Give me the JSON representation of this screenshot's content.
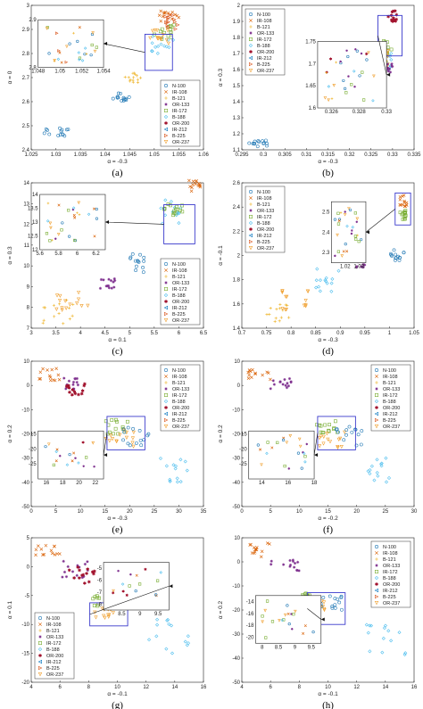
{
  "series_style": [
    {
      "name": "N-100",
      "color": "#1f77b4",
      "marker": "circle"
    },
    {
      "name": "IR-108",
      "color": "#d95f02",
      "marker": "x"
    },
    {
      "name": "B-121",
      "color": "#edb120",
      "marker": "plus"
    },
    {
      "name": "OR-133",
      "color": "#7e2f8e",
      "marker": "star"
    },
    {
      "name": "IR-172",
      "color": "#77ac30",
      "marker": "square"
    },
    {
      "name": "B-188",
      "color": "#4dbeee",
      "marker": "diamond"
    },
    {
      "name": "OR-200",
      "color": "#a2142f",
      "marker": "hexagram"
    },
    {
      "name": "IR-212",
      "color": "#0072bd",
      "marker": "tri-left"
    },
    {
      "name": "B-225",
      "color": "#d95319",
      "marker": "tri-right"
    },
    {
      "name": "OR-237",
      "color": "#f0a030",
      "marker": "tri-down"
    }
  ],
  "chart_data": [
    {
      "type": "scatter",
      "caption": "(a)",
      "xlabel": "α = -0.3",
      "ylabel": "α = 0",
      "xlim": [
        1.025,
        1.06
      ],
      "ylim": [
        2.4,
        3.0
      ],
      "xticks": [
        1.025,
        1.03,
        1.035,
        1.04,
        1.045,
        1.05,
        1.055,
        1.06
      ],
      "yticks": [
        2.4,
        2.5,
        2.6,
        2.7,
        2.8,
        2.9,
        3.0
      ],
      "legend": "bottom-right",
      "clusters": [
        {
          "s": 0,
          "x": [
            1.027,
            1.033
          ],
          "y": [
            2.45,
            2.49
          ]
        },
        {
          "s": 0,
          "x": [
            1.041,
            1.045
          ],
          "y": [
            2.6,
            2.64
          ]
        },
        {
          "s": 2,
          "x": [
            1.044,
            1.048
          ],
          "y": [
            2.68,
            2.72
          ]
        },
        {
          "s": 1,
          "x": [
            1.051,
            1.055
          ],
          "y": [
            2.92,
            2.98
          ]
        },
        {
          "s": 4,
          "x": [
            1.05,
            1.055
          ],
          "y": [
            2.86,
            2.92
          ]
        },
        {
          "s": 5,
          "x": [
            1.049,
            1.054
          ],
          "y": [
            2.8,
            2.88
          ]
        },
        {
          "s": 8,
          "x": [
            1.052,
            1.055
          ],
          "y": [
            2.9,
            2.96
          ]
        },
        {
          "s": 9,
          "x": [
            1.049,
            1.053
          ],
          "y": [
            2.84,
            2.9
          ]
        }
      ],
      "inset": {
        "xlim": [
          1.048,
          1.054
        ],
        "ylim": [
          2.8,
          2.9
        ],
        "xticks": [
          1.048,
          1.05,
          1.052,
          1.054
        ],
        "yticks": [
          2.8,
          2.9
        ]
      }
    },
    {
      "type": "scatter",
      "caption": "(b)",
      "xlabel": "α = -0.3",
      "ylabel": "α = 0.3",
      "xlim": [
        0.295,
        0.335
      ],
      "ylim": [
        1.1,
        2.0
      ],
      "xticks": [
        0.295,
        0.3,
        0.305,
        0.31,
        0.315,
        0.32,
        0.325,
        0.33,
        0.335
      ],
      "yticks": [
        1.1,
        1.2,
        1.3,
        1.4,
        1.5,
        1.6,
        1.7,
        1.8,
        1.9,
        2.0
      ],
      "legend": "top-left",
      "clusters": [
        {
          "s": 0,
          "x": [
            0.296,
            0.301
          ],
          "y": [
            1.12,
            1.16
          ]
        },
        {
          "s": 0,
          "x": [
            0.325,
            0.327
          ],
          "y": [
            1.45,
            1.55
          ]
        },
        {
          "s": 6,
          "x": [
            0.329,
            0.331
          ],
          "y": [
            1.9,
            1.98
          ]
        },
        {
          "s": 4,
          "x": [
            0.327,
            0.33
          ],
          "y": [
            1.7,
            1.78
          ]
        },
        {
          "s": 5,
          "x": [
            0.327,
            0.33
          ],
          "y": [
            1.6,
            1.7
          ]
        },
        {
          "s": 2,
          "x": [
            0.326,
            0.329
          ],
          "y": [
            1.6,
            1.75
          ]
        },
        {
          "s": 9,
          "x": [
            0.326,
            0.329
          ],
          "y": [
            1.62,
            1.72
          ]
        },
        {
          "s": 3,
          "x": [
            0.328,
            0.33
          ],
          "y": [
            1.58,
            1.64
          ]
        }
      ],
      "inset": {
        "xlim": [
          0.325,
          0.33
        ],
        "ylim": [
          1.6,
          1.75
        ],
        "xticks": [
          0.326,
          0.328,
          0.33
        ],
        "yticks": [
          1.6,
          1.65,
          1.7,
          1.75
        ]
      }
    },
    {
      "type": "scatter",
      "caption": "(c)",
      "xlabel": "α = 0.1",
      "ylabel": "α = 0.3",
      "xlim": [
        3,
        6.5
      ],
      "ylim": [
        7,
        14
      ],
      "xticks": [
        3,
        3.5,
        4,
        4.5,
        5,
        5.5,
        6,
        6.5
      ],
      "yticks": [
        7,
        8,
        9,
        10,
        11,
        12,
        13,
        14
      ],
      "legend": "bottom-right",
      "clusters": [
        {
          "s": 2,
          "x": [
            3.1,
            3.9
          ],
          "y": [
            7.2,
            8.4
          ]
        },
        {
          "s": 9,
          "x": [
            3.5,
            4.2
          ],
          "y": [
            7.8,
            8.8
          ]
        },
        {
          "s": 3,
          "x": [
            4.4,
            4.7
          ],
          "y": [
            8.9,
            9.4
          ]
        },
        {
          "s": 0,
          "x": [
            5.0,
            5.3
          ],
          "y": [
            9.6,
            10.6
          ]
        },
        {
          "s": 5,
          "x": [
            5.6,
            6.2
          ],
          "y": [
            12.0,
            13.2
          ]
        },
        {
          "s": 4,
          "x": [
            5.7,
            6.1
          ],
          "y": [
            12.4,
            13.0
          ]
        },
        {
          "s": 1,
          "x": [
            6.2,
            6.45
          ],
          "y": [
            13.6,
            14.2
          ]
        }
      ],
      "inset": {
        "xlim": [
          5.6,
          6.3
        ],
        "ylim": [
          12,
          14
        ],
        "xticks": [
          5.6,
          5.8,
          6,
          6.2
        ],
        "yticks": [
          12,
          12.5,
          13,
          13.5,
          14
        ]
      }
    },
    {
      "type": "scatter",
      "caption": "(d)",
      "xlabel": "α = -0.3",
      "ylabel": "α = -0.1",
      "xlim": [
        0.7,
        1.05
      ],
      "ylim": [
        1.4,
        2.6
      ],
      "xticks": [
        0.7,
        0.75,
        0.8,
        0.85,
        0.9,
        0.95,
        1.0,
        1.05
      ],
      "yticks": [
        1.4,
        1.6,
        1.8,
        2.0,
        2.2,
        2.4,
        2.6
      ],
      "legend": "top-left",
      "clusters": [
        {
          "s": 2,
          "x": [
            0.74,
            0.8
          ],
          "y": [
            1.45,
            1.6
          ]
        },
        {
          "s": 9,
          "x": [
            0.78,
            0.84
          ],
          "y": [
            1.55,
            1.75
          ]
        },
        {
          "s": 5,
          "x": [
            0.85,
            0.9
          ],
          "y": [
            1.7,
            1.9
          ]
        },
        {
          "s": 3,
          "x": [
            0.93,
            0.95
          ],
          "y": [
            1.9,
            1.96
          ]
        },
        {
          "s": 0,
          "x": [
            1.0,
            1.03
          ],
          "y": [
            1.95,
            2.05
          ]
        },
        {
          "s": 1,
          "x": [
            1.02,
            1.035
          ],
          "y": [
            2.4,
            2.5
          ]
        },
        {
          "s": 4,
          "x": [
            1.02,
            1.035
          ],
          "y": [
            2.3,
            2.38
          ]
        }
      ],
      "inset": {
        "xlim": [
          1.01,
          1.035
        ],
        "ylim": [
          2.25,
          2.55
        ],
        "xticks": [
          1.02,
          1.03
        ],
        "yticks": [
          2.3,
          2.4,
          2.5
        ]
      }
    },
    {
      "type": "scatter",
      "caption": "(e)",
      "xlabel": "α = -0.3",
      "ylabel": "α = 0.2",
      "xlim": [
        0,
        35
      ],
      "ylim": [
        -50,
        10
      ],
      "xticks": [
        0,
        5,
        10,
        15,
        20,
        25,
        30,
        35
      ],
      "yticks": [
        -50,
        -40,
        -30,
        -20,
        -10,
        0,
        10
      ],
      "legend": "top-right",
      "clusters": [
        {
          "s": 1,
          "x": [
            1,
            6
          ],
          "y": [
            2,
            7
          ]
        },
        {
          "s": 3,
          "x": [
            6,
            10
          ],
          "y": [
            -2,
            3
          ]
        },
        {
          "s": 6,
          "x": [
            7,
            11
          ],
          "y": [
            -4,
            1
          ]
        },
        {
          "s": 4,
          "x": [
            15,
            20
          ],
          "y": [
            -20,
            -14
          ]
        },
        {
          "s": 9,
          "x": [
            15,
            21
          ],
          "y": [
            -26,
            -18
          ]
        },
        {
          "s": 0,
          "x": [
            18,
            24
          ],
          "y": [
            -25,
            -17
          ]
        },
        {
          "s": 5,
          "x": [
            26,
            32
          ],
          "y": [
            -40,
            -30
          ]
        }
      ],
      "inset": {
        "xlim": [
          15,
          23
        ],
        "ylim": [
          -30,
          -14
        ],
        "xticks": [
          16,
          18,
          20,
          22
        ],
        "yticks": [
          -15,
          -20,
          -25
        ]
      }
    },
    {
      "type": "scatter",
      "caption": "(f)",
      "xlabel": "α = -0.2",
      "ylabel": "α = 0.2",
      "xlim": [
        0,
        30
      ],
      "ylim": [
        -50,
        10
      ],
      "xticks": [
        0,
        5,
        10,
        15,
        20,
        25,
        30
      ],
      "yticks": [
        -50,
        -40,
        -30,
        -20,
        -10,
        0,
        10
      ],
      "legend": "top-right",
      "clusters": [
        {
          "s": 1,
          "x": [
            1,
            5
          ],
          "y": [
            2,
            7
          ]
        },
        {
          "s": 3,
          "x": [
            5,
            9
          ],
          "y": [
            -2,
            3
          ]
        },
        {
          "s": 4,
          "x": [
            13,
            17
          ],
          "y": [
            -20,
            -14
          ]
        },
        {
          "s": 9,
          "x": [
            13,
            18
          ],
          "y": [
            -26,
            -18
          ]
        },
        {
          "s": 0,
          "x": [
            16,
            21
          ],
          "y": [
            -25,
            -17
          ]
        },
        {
          "s": 5,
          "x": [
            22,
            28
          ],
          "y": [
            -40,
            -30
          ]
        }
      ],
      "inset": {
        "xlim": [
          13,
          18
        ],
        "ylim": [
          -30,
          -14
        ],
        "xticks": [
          14,
          16,
          18
        ],
        "yticks": [
          -15,
          -20,
          -25
        ]
      }
    },
    {
      "type": "scatter",
      "caption": "(g)",
      "xlabel": "α = -0.1",
      "ylabel": "α = 0.1",
      "xlim": [
        4,
        16
      ],
      "ylim": [
        -20,
        5
      ],
      "xticks": [
        4,
        6,
        8,
        10,
        12,
        14,
        16
      ],
      "yticks": [
        -20,
        -15,
        -10,
        -5,
        0,
        5
      ],
      "legend": "bottom-left",
      "clusters": [
        {
          "s": 1,
          "x": [
            4.2,
            6
          ],
          "y": [
            2,
            4
          ]
        },
        {
          "s": 3,
          "x": [
            6,
            8
          ],
          "y": [
            -2,
            1
          ]
        },
        {
          "s": 6,
          "x": [
            6.5,
            8.5
          ],
          "y": [
            -3,
            0
          ]
        },
        {
          "s": 4,
          "x": [
            8.3,
            9.5
          ],
          "y": [
            -7,
            -5
          ]
        },
        {
          "s": 9,
          "x": [
            8.3,
            9.8
          ],
          "y": [
            -9,
            -7
          ]
        },
        {
          "s": 0,
          "x": [
            9.5,
            11
          ],
          "y": [
            -8,
            -5
          ]
        },
        {
          "s": 5,
          "x": [
            12,
            15
          ],
          "y": [
            -15,
            -9
          ]
        }
      ],
      "inset": {
        "xlim": [
          8,
          9.8
        ],
        "ylim": [
          -8.5,
          -4.5
        ],
        "xticks": [
          8.5,
          9,
          9.5
        ],
        "yticks": [
          -5,
          -6,
          -7,
          -8
        ]
      }
    },
    {
      "type": "scatter",
      "caption": "(h)",
      "xlabel": "α = -0.1",
      "ylabel": "α = 0.2",
      "xlim": [
        4,
        16
      ],
      "ylim": [
        -50,
        10
      ],
      "xticks": [
        4,
        6,
        8,
        10,
        12,
        14,
        16
      ],
      "yticks": [
        -50,
        -40,
        -30,
        -20,
        -10,
        0,
        10
      ],
      "legend": "top-right",
      "clusters": [
        {
          "s": 1,
          "x": [
            4.2,
            6
          ],
          "y": [
            2,
            8
          ]
        },
        {
          "s": 3,
          "x": [
            6,
            8
          ],
          "y": [
            -4,
            2
          ]
        },
        {
          "s": 4,
          "x": [
            8,
            9.5
          ],
          "y": [
            -16,
            -13
          ]
        },
        {
          "s": 9,
          "x": [
            8,
            9.8
          ],
          "y": [
            -20,
            -16
          ]
        },
        {
          "s": 0,
          "x": [
            9.5,
            11
          ],
          "y": [
            -20,
            -14
          ]
        },
        {
          "s": 5,
          "x": [
            12,
            15.5
          ],
          "y": [
            -40,
            -26
          ]
        }
      ],
      "inset": {
        "xlim": [
          7.8,
          9.8
        ],
        "ylim": [
          -21,
          -13
        ],
        "xticks": [
          8,
          8.5,
          9,
          9.5
        ],
        "yticks": [
          -14,
          -16,
          -18,
          -20
        ]
      }
    }
  ]
}
